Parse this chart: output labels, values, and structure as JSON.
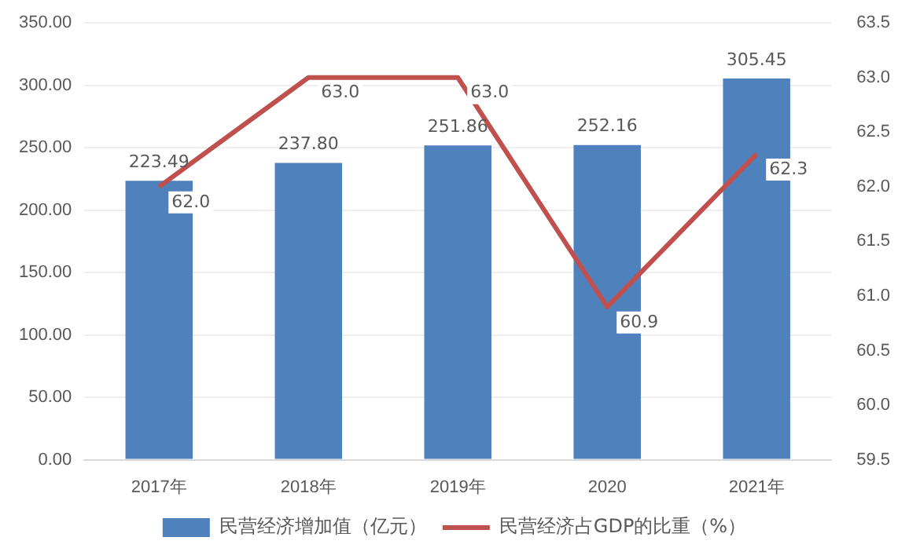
{
  "chart_data": {
    "type": "bar",
    "categories": [
      "2017年",
      "2018年",
      "2019年",
      "2020",
      "2021年"
    ],
    "series": [
      {
        "name": "民营经济增加值（亿元）",
        "color": "#4f81bd",
        "values": [
          223.49,
          237.8,
          251.86,
          252.16,
          305.45
        ],
        "value_labels": [
          "223.49",
          "237.80",
          "251.86",
          "252.16",
          "305.45"
        ]
      },
      {
        "name": "民营经济占GDP的比重（%）",
        "type": "line",
        "axis": "y2",
        "color": "#c0504d",
        "values": [
          62.0,
          63.0,
          63.0,
          60.9,
          62.3
        ],
        "value_labels": [
          "62.0",
          "63.0",
          "63.0",
          "60.9",
          "62.3"
        ]
      }
    ],
    "ylim": [
      0,
      350
    ],
    "yticks": [
      {
        "value": 0,
        "label": "0.00"
      },
      {
        "value": 50,
        "label": "50.00"
      },
      {
        "value": 100,
        "label": "100.00"
      },
      {
        "value": 150,
        "label": "150.00"
      },
      {
        "value": 200,
        "label": "200.00"
      },
      {
        "value": 250,
        "label": "250.00"
      },
      {
        "value": 300,
        "label": "300.00"
      },
      {
        "value": 350,
        "label": "350.00"
      }
    ],
    "y2lim": [
      59.5,
      63.5
    ],
    "y2ticks": [
      59.5,
      {
        "value": 60,
        "label": "60.0"
      },
      60.5,
      {
        "value": 61,
        "label": "61.0"
      },
      61.5,
      {
        "value": 62,
        "label": "62.0"
      },
      62.5,
      {
        "value": 63,
        "label": "63.0"
      },
      63.5
    ],
    "grid": "y",
    "legend": "bottom",
    "marker": "none",
    "line_style": "solid"
  }
}
